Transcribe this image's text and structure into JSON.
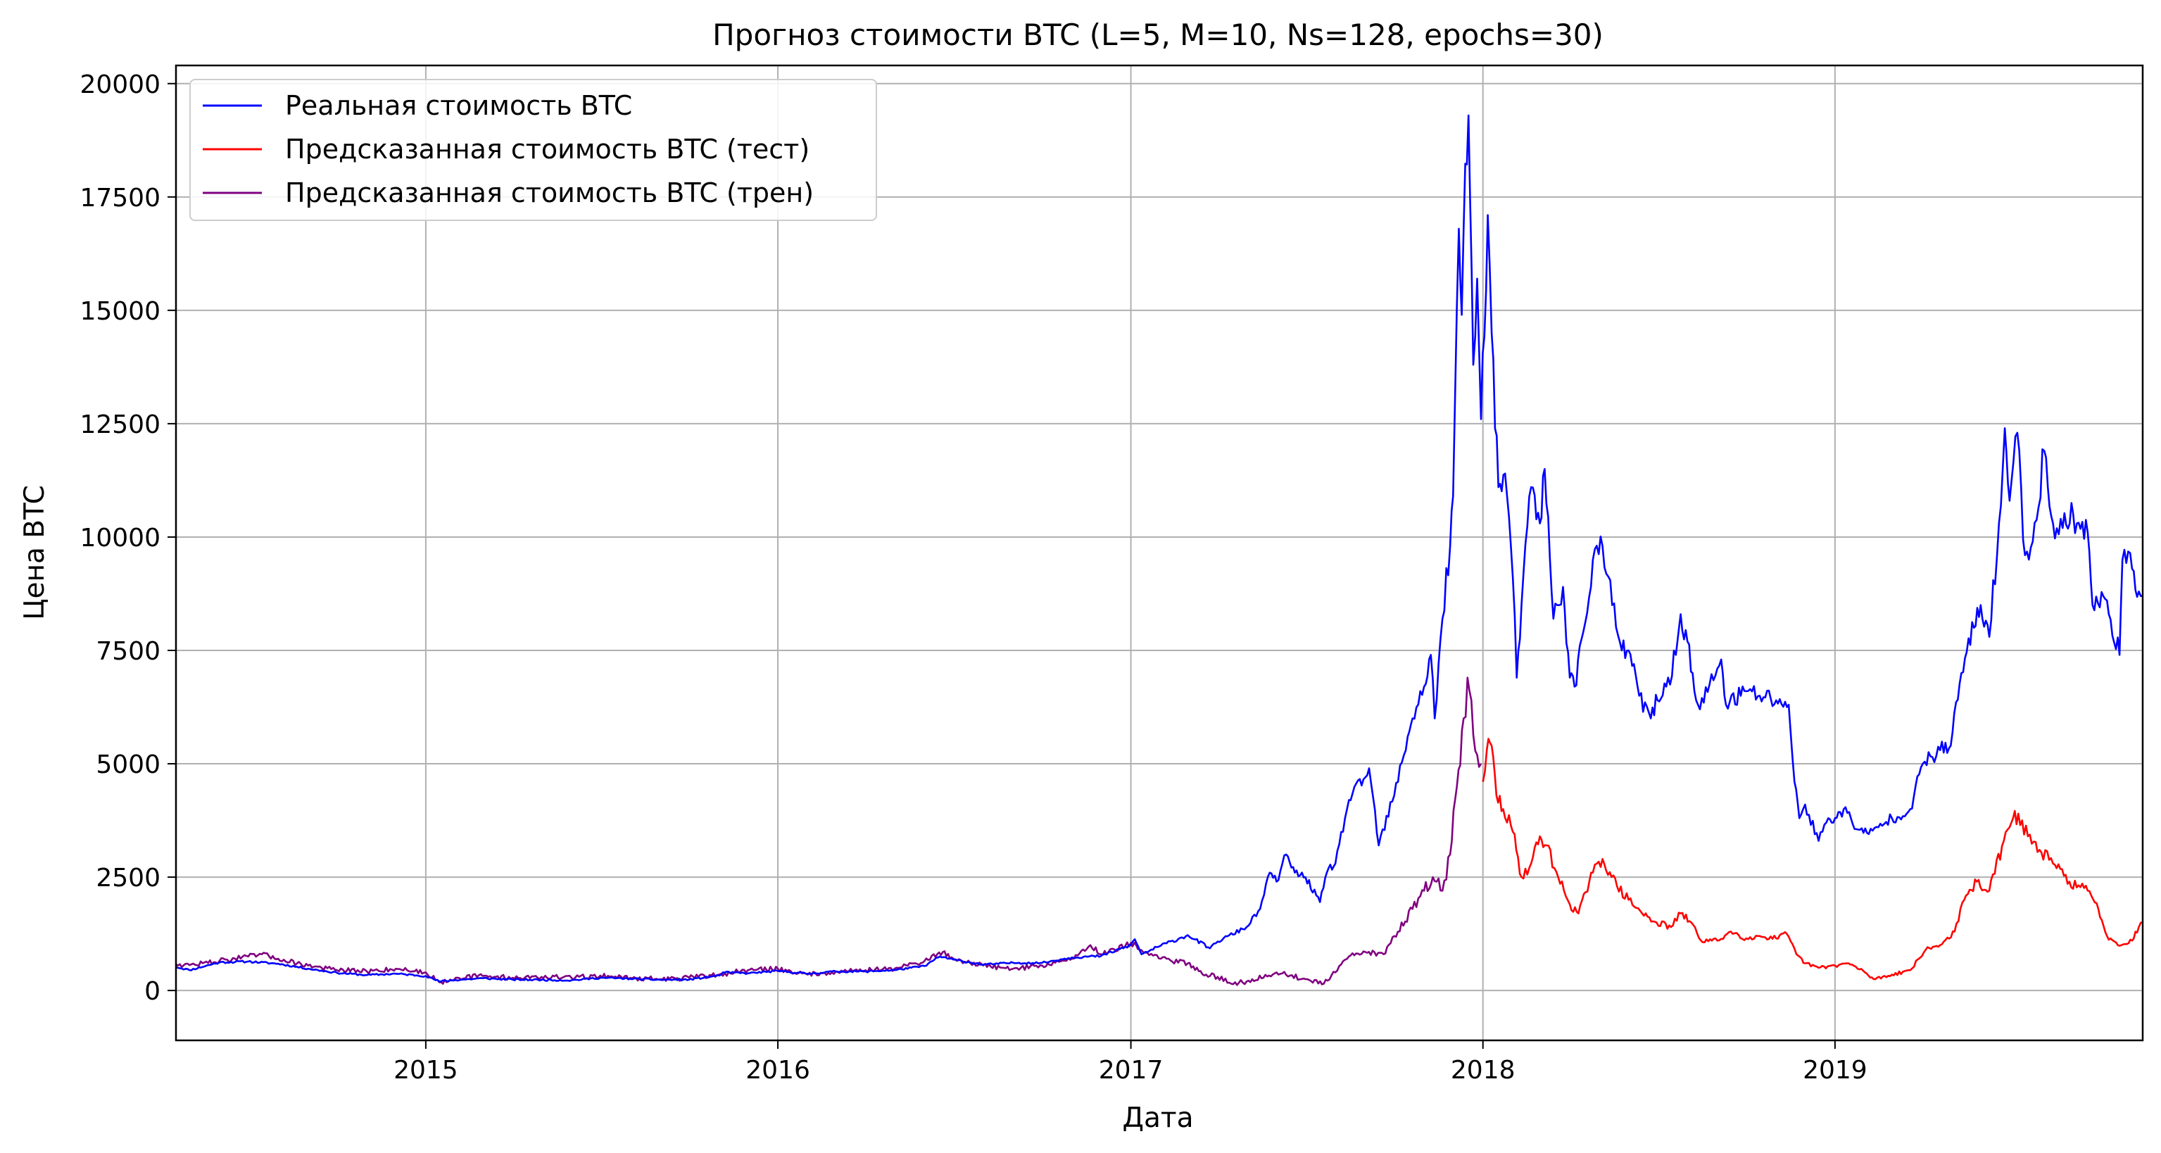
{
  "chart_data": {
    "type": "line",
    "title": "Прогноз стоимости BTC (L=5, M=10, Ns=128, epochs=30)",
    "xlabel": "Дата",
    "ylabel": "Цена BTC",
    "x_axis": "date",
    "xlim": [
      "2014-04-17",
      "2019-11-16"
    ],
    "ylim": [
      -1100,
      20400
    ],
    "x_ticks": [
      "2015-01-01",
      "2016-01-01",
      "2017-01-01",
      "2018-01-01",
      "2019-01-01"
    ],
    "x_tick_labels": [
      "2015",
      "2016",
      "2017",
      "2018",
      "2019"
    ],
    "y_ticks": [
      0,
      2500,
      5000,
      7500,
      10000,
      12500,
      15000,
      17500,
      20000
    ],
    "y_tick_labels": [
      "0",
      "2500",
      "5000",
      "7500",
      "10000",
      "12500",
      "15000",
      "17500",
      "20000"
    ],
    "grid": true,
    "legend_position": "top-left",
    "series": [
      {
        "name": "Реальная стоимость BTC",
        "color": "#0000ff",
        "points": [
          [
            "2014-04-17",
            520
          ],
          [
            "2014-05-01",
            450
          ],
          [
            "2014-06-01",
            620
          ],
          [
            "2014-07-01",
            640
          ],
          [
            "2014-08-01",
            590
          ],
          [
            "2014-09-01",
            480
          ],
          [
            "2014-10-01",
            390
          ],
          [
            "2014-11-01",
            340
          ],
          [
            "2014-12-01",
            370
          ],
          [
            "2015-01-01",
            320
          ],
          [
            "2015-01-15",
            200
          ],
          [
            "2015-02-01",
            230
          ],
          [
            "2015-03-01",
            270
          ],
          [
            "2015-04-01",
            240
          ],
          [
            "2015-05-01",
            235
          ],
          [
            "2015-06-01",
            225
          ],
          [
            "2015-07-01",
            280
          ],
          [
            "2015-08-01",
            260
          ],
          [
            "2015-09-01",
            235
          ],
          [
            "2015-10-01",
            240
          ],
          [
            "2015-11-01",
            330
          ],
          [
            "2015-11-05",
            400
          ],
          [
            "2015-12-01",
            380
          ],
          [
            "2016-01-01",
            430
          ],
          [
            "2016-02-01",
            370
          ],
          [
            "2016-03-01",
            420
          ],
          [
            "2016-04-01",
            420
          ],
          [
            "2016-05-01",
            450
          ],
          [
            "2016-06-01",
            540
          ],
          [
            "2016-06-17",
            750
          ],
          [
            "2016-07-01",
            680
          ],
          [
            "2016-08-01",
            570
          ],
          [
            "2016-09-01",
            610
          ],
          [
            "2016-10-01",
            610
          ],
          [
            "2016-11-01",
            730
          ],
          [
            "2016-12-01",
            760
          ],
          [
            "2017-01-01",
            1000
          ],
          [
            "2017-01-05",
            1130
          ],
          [
            "2017-01-12",
            800
          ],
          [
            "2017-02-01",
            990
          ],
          [
            "2017-03-01",
            1220
          ],
          [
            "2017-03-24",
            930
          ],
          [
            "2017-04-01",
            1080
          ],
          [
            "2017-05-01",
            1400
          ],
          [
            "2017-05-15",
            1800
          ],
          [
            "2017-05-25",
            2600
          ],
          [
            "2017-06-01",
            2400
          ],
          [
            "2017-06-11",
            3000
          ],
          [
            "2017-06-20",
            2600
          ],
          [
            "2017-07-01",
            2500
          ],
          [
            "2017-07-16",
            1950
          ],
          [
            "2017-07-25",
            2700
          ],
          [
            "2017-08-01",
            2800
          ],
          [
            "2017-08-15",
            4200
          ],
          [
            "2017-09-01",
            4700
          ],
          [
            "2017-09-05",
            4900
          ],
          [
            "2017-09-15",
            3200
          ],
          [
            "2017-10-01",
            4300
          ],
          [
            "2017-10-15",
            5600
          ],
          [
            "2017-10-20",
            6000
          ],
          [
            "2017-11-01",
            6700
          ],
          [
            "2017-11-08",
            7400
          ],
          [
            "2017-11-12",
            6000
          ],
          [
            "2017-11-20",
            8200
          ],
          [
            "2017-11-28",
            9800
          ],
          [
            "2017-12-01",
            10900
          ],
          [
            "2017-12-07",
            16800
          ],
          [
            "2017-12-10",
            14900
          ],
          [
            "2017-12-12",
            16800
          ],
          [
            "2017-12-17",
            19300
          ],
          [
            "2017-12-22",
            13800
          ],
          [
            "2017-12-26",
            15700
          ],
          [
            "2017-12-30",
            12600
          ],
          [
            "2018-01-06",
            17100
          ],
          [
            "2018-01-10",
            14500
          ],
          [
            "2018-01-17",
            11100
          ],
          [
            "2018-01-24",
            11400
          ],
          [
            "2018-02-01",
            9100
          ],
          [
            "2018-02-05",
            6900
          ],
          [
            "2018-02-10",
            8500
          ],
          [
            "2018-02-20",
            11100
          ],
          [
            "2018-03-01",
            10300
          ],
          [
            "2018-03-06",
            11500
          ],
          [
            "2018-03-15",
            8200
          ],
          [
            "2018-03-25",
            8900
          ],
          [
            "2018-04-01",
            6900
          ],
          [
            "2018-04-06",
            6700
          ],
          [
            "2018-04-15",
            7900
          ],
          [
            "2018-04-25",
            9500
          ],
          [
            "2018-05-05",
            9800
          ],
          [
            "2018-05-15",
            8500
          ],
          [
            "2018-05-25",
            7500
          ],
          [
            "2018-06-01",
            7500
          ],
          [
            "2018-06-12",
            6500
          ],
          [
            "2018-06-24",
            6000
          ],
          [
            "2018-07-01",
            6400
          ],
          [
            "2018-07-10",
            6700
          ],
          [
            "2018-07-20",
            7400
          ],
          [
            "2018-07-25",
            8300
          ],
          [
            "2018-08-01",
            7700
          ],
          [
            "2018-08-10",
            6400
          ],
          [
            "2018-08-14",
            6200
          ],
          [
            "2018-09-01",
            7100
          ],
          [
            "2018-09-05",
            7300
          ],
          [
            "2018-09-10",
            6300
          ],
          [
            "2018-10-01",
            6600
          ],
          [
            "2018-10-15",
            6500
          ],
          [
            "2018-11-01",
            6400
          ],
          [
            "2018-11-14",
            6300
          ],
          [
            "2018-11-20",
            4600
          ],
          [
            "2018-11-25",
            3800
          ],
          [
            "2018-12-01",
            4100
          ],
          [
            "2018-12-15",
            3300
          ],
          [
            "2018-12-25",
            3800
          ],
          [
            "2019-01-01",
            3800
          ],
          [
            "2019-01-10",
            4000
          ],
          [
            "2019-01-25",
            3550
          ],
          [
            "2019-02-05",
            3450
          ],
          [
            "2019-02-15",
            3600
          ],
          [
            "2019-03-01",
            3800
          ],
          [
            "2019-03-20",
            4000
          ],
          [
            "2019-04-02",
            5000
          ],
          [
            "2019-04-20",
            5300
          ],
          [
            "2019-05-01",
            5400
          ],
          [
            "2019-05-12",
            7000
          ],
          [
            "2019-05-25",
            8000
          ],
          [
            "2019-06-01",
            8500
          ],
          [
            "2019-06-10",
            7800
          ],
          [
            "2019-06-22",
            10700
          ],
          [
            "2019-06-26",
            12400
          ],
          [
            "2019-07-01",
            10800
          ],
          [
            "2019-07-09",
            12300
          ],
          [
            "2019-07-17",
            9600
          ],
          [
            "2019-07-25",
            9900
          ],
          [
            "2019-08-06",
            11900
          ],
          [
            "2019-08-15",
            10300
          ],
          [
            "2019-08-25",
            10200
          ],
          [
            "2019-09-05",
            10500
          ],
          [
            "2019-09-20",
            10100
          ],
          [
            "2019-09-25",
            8500
          ],
          [
            "2019-10-10",
            8600
          ],
          [
            "2019-10-23",
            7400
          ],
          [
            "2019-10-26",
            9500
          ],
          [
            "2019-11-05",
            9300
          ],
          [
            "2019-11-12",
            8800
          ],
          [
            "2019-11-16",
            8700
          ]
        ]
      },
      {
        "name": "Предсказанная стоимость BTC (тест)",
        "color": "#ff0000",
        "points": [
          [
            "2018-01-01",
            4600
          ],
          [
            "2018-01-05",
            5300
          ],
          [
            "2018-01-10",
            5400
          ],
          [
            "2018-01-15",
            4300
          ],
          [
            "2018-01-22",
            4000
          ],
          [
            "2018-02-01",
            3500
          ],
          [
            "2018-02-10",
            2500
          ],
          [
            "2018-02-20",
            2800
          ],
          [
            "2018-03-01",
            3400
          ],
          [
            "2018-03-08",
            3200
          ],
          [
            "2018-03-20",
            2500
          ],
          [
            "2018-04-01",
            1900
          ],
          [
            "2018-04-10",
            1700
          ],
          [
            "2018-04-25",
            2600
          ],
          [
            "2018-05-05",
            2900
          ],
          [
            "2018-05-20",
            2300
          ],
          [
            "2018-06-01",
            2000
          ],
          [
            "2018-06-15",
            1700
          ],
          [
            "2018-06-30",
            1500
          ],
          [
            "2018-07-15",
            1400
          ],
          [
            "2018-07-25",
            1700
          ],
          [
            "2018-08-05",
            1500
          ],
          [
            "2018-08-15",
            1100
          ],
          [
            "2018-09-01",
            1100
          ],
          [
            "2018-09-15",
            1300
          ],
          [
            "2018-10-01",
            1150
          ],
          [
            "2018-10-15",
            1200
          ],
          [
            "2018-11-01",
            1150
          ],
          [
            "2018-11-12",
            1250
          ],
          [
            "2018-11-22",
            800
          ],
          [
            "2018-12-01",
            600
          ],
          [
            "2018-12-15",
            500
          ],
          [
            "2019-01-01",
            550
          ],
          [
            "2019-01-15",
            600
          ],
          [
            "2019-02-01",
            400
          ],
          [
            "2019-02-10",
            250
          ],
          [
            "2019-03-01",
            350
          ],
          [
            "2019-03-20",
            450
          ],
          [
            "2019-04-05",
            900
          ],
          [
            "2019-04-20",
            1000
          ],
          [
            "2019-05-05",
            1300
          ],
          [
            "2019-05-15",
            2000
          ],
          [
            "2019-05-28",
            2400
          ],
          [
            "2019-06-10",
            2200
          ],
          [
            "2019-06-25",
            3300
          ],
          [
            "2019-07-01",
            3600
          ],
          [
            "2019-07-10",
            3900
          ],
          [
            "2019-07-20",
            3400
          ],
          [
            "2019-08-01",
            3100
          ],
          [
            "2019-08-15",
            2800
          ],
          [
            "2019-09-01",
            2400
          ],
          [
            "2019-09-20",
            2200
          ],
          [
            "2019-10-01",
            1800
          ],
          [
            "2019-10-10",
            1200
          ],
          [
            "2019-10-25",
            1000
          ],
          [
            "2019-11-05",
            1100
          ],
          [
            "2019-11-12",
            1400
          ],
          [
            "2019-11-16",
            1500
          ]
        ]
      },
      {
        "name": "Предсказанная стоимость BTC (трен)",
        "color": "#800080",
        "points": [
          [
            "2014-04-17",
            580
          ],
          [
            "2014-05-01",
            560
          ],
          [
            "2014-06-01",
            650
          ],
          [
            "2014-07-01",
            750
          ],
          [
            "2014-07-15",
            800
          ],
          [
            "2014-08-01",
            700
          ],
          [
            "2014-09-01",
            550
          ],
          [
            "2014-10-01",
            450
          ],
          [
            "2014-11-01",
            420
          ],
          [
            "2014-12-01",
            480
          ],
          [
            "2015-01-01",
            400
          ],
          [
            "2015-01-15",
            180
          ],
          [
            "2015-02-01",
            280
          ],
          [
            "2015-03-01",
            320
          ],
          [
            "2015-04-01",
            280
          ],
          [
            "2015-05-01",
            300
          ],
          [
            "2015-06-01",
            280
          ],
          [
            "2015-07-01",
            330
          ],
          [
            "2015-08-01",
            280
          ],
          [
            "2015-09-01",
            250
          ],
          [
            "2015-10-01",
            280
          ],
          [
            "2015-11-01",
            350
          ],
          [
            "2015-12-01",
            450
          ],
          [
            "2016-01-01",
            480
          ],
          [
            "2016-02-01",
            350
          ],
          [
            "2016-03-01",
            420
          ],
          [
            "2016-04-01",
            450
          ],
          [
            "2016-05-01",
            480
          ],
          [
            "2016-06-01",
            650
          ],
          [
            "2016-06-20",
            850
          ],
          [
            "2016-07-01",
            700
          ],
          [
            "2016-08-01",
            550
          ],
          [
            "2016-09-01",
            480
          ],
          [
            "2016-10-01",
            550
          ],
          [
            "2016-11-01",
            700
          ],
          [
            "2016-11-20",
            1000
          ],
          [
            "2016-12-01",
            800
          ],
          [
            "2017-01-01",
            1050
          ],
          [
            "2017-01-10",
            900
          ],
          [
            "2017-02-01",
            700
          ],
          [
            "2017-03-01",
            600
          ],
          [
            "2017-03-20",
            350
          ],
          [
            "2017-04-01",
            300
          ],
          [
            "2017-04-15",
            150
          ],
          [
            "2017-05-01",
            200
          ],
          [
            "2017-06-01",
            400
          ],
          [
            "2017-07-01",
            250
          ],
          [
            "2017-07-20",
            150
          ],
          [
            "2017-08-01",
            400
          ],
          [
            "2017-08-15",
            750
          ],
          [
            "2017-09-01",
            850
          ],
          [
            "2017-09-20",
            800
          ],
          [
            "2017-10-01",
            1200
          ],
          [
            "2017-10-20",
            1800
          ],
          [
            "2017-11-01",
            2200
          ],
          [
            "2017-11-10",
            2500
          ],
          [
            "2017-11-20",
            2200
          ],
          [
            "2017-11-28",
            3000
          ],
          [
            "2017-12-05",
            4500
          ],
          [
            "2017-12-12",
            6000
          ],
          [
            "2017-12-16",
            6900
          ],
          [
            "2017-12-20",
            6400
          ],
          [
            "2017-12-26",
            5200
          ],
          [
            "2017-12-30",
            5000
          ]
        ]
      }
    ]
  }
}
